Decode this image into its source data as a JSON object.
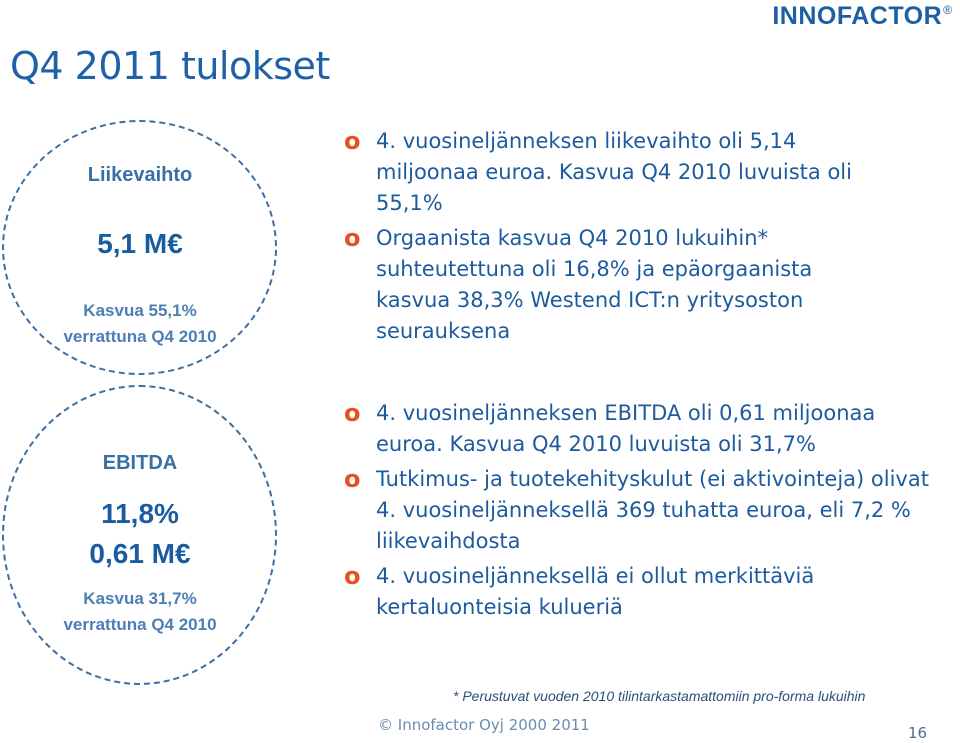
{
  "slide": {
    "title": "Q4 2011 tulokset",
    "logo": "INNOFACTOR",
    "logo_reg": "®"
  },
  "circles": [
    {
      "label": "Liikevaihto",
      "big": [
        "5,1 M€"
      ],
      "growth": "Kasvua 55,1%",
      "compare": "verrattuna Q4 2010"
    },
    {
      "label": "EBITDA",
      "big": [
        "11,8%",
        "0,61 M€"
      ],
      "growth": "Kasvua 31,7%",
      "compare": "verrattuna Q4 2010"
    }
  ],
  "bullet_marker": "o",
  "bullets_revenue": [
    "4. vuosineljänneksen liikevaihto oli 5,14 miljoonaa euroa. Kasvua Q4 2010 luvuista oli 55,1%",
    "Orgaanista kasvua Q4 2010 lukuihin* suhteutettuna oli 16,8% ja epäorgaanista kasvua 38,3% Westend ICT:n yritysoston seurauksena"
  ],
  "bullets_ebitda": [
    "4. vuosineljänneksen EBITDA oli 0,61 miljoonaa euroa. Kasvua Q4 2010 luvuista oli 31,7%",
    "Tutkimus- ja tuotekehityskulut (ei aktivointeja) olivat 4. vuosineljänneksellä 369 tuhatta euroa, eli 7,2 % liikevaihdosta",
    "4. vuosineljänneksellä ei ollut merkittäviä kertaluonteisia kulueriä"
  ],
  "footnote": "* Perustuvat vuoden 2010 tilintarkastamattomiin pro-forma lukuihin",
  "copyright": "© Innofactor Oyj 2000 2011",
  "page_number": "16"
}
